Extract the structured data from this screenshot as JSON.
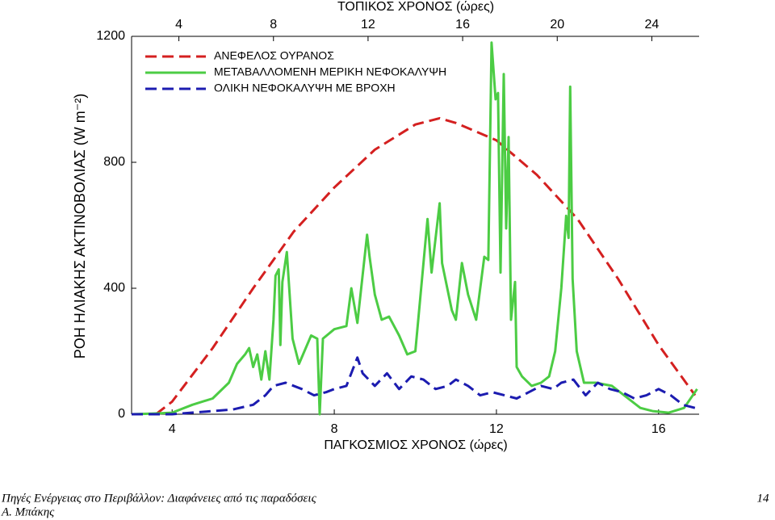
{
  "chart_data": {
    "type": "line",
    "xlabel": "ΠΑΓΚΟΣΜΙΟΣ ΧΡΟΝΟΣ (ώρες)",
    "x2label": "ΤΟΠΙΚΟΣ ΧΡΟΝΟΣ (ώρες)",
    "ylabel": "ΡΟΗ ΗΛΙΑΚΗΣ ΑΚΤΙΝΟΒΟΛΙΑΣ (W m⁻²)",
    "xlim": [
      3,
      17
    ],
    "xticks": [
      4,
      8,
      12,
      16
    ],
    "x2lim": [
      2,
      26
    ],
    "x2ticks": [
      4,
      8,
      12,
      16,
      20,
      24
    ],
    "ylim": [
      0,
      1200
    ],
    "yticks": [
      0,
      400,
      800,
      1200
    ],
    "grid": false,
    "legend": "upper left",
    "series": [
      {
        "name": "ΑΝΕΦΕΛΟΣ ΟΥΡΑΝΟΣ",
        "color": "#d42020",
        "dash": true,
        "x": [
          3.6,
          4,
          5,
          6,
          7,
          8,
          9,
          10,
          10.6,
          11,
          12,
          13,
          14,
          15,
          16,
          16.9
        ],
        "values": [
          0,
          40,
          210,
          400,
          580,
          720,
          840,
          920,
          940,
          925,
          870,
          760,
          620,
          430,
          220,
          60
        ]
      },
      {
        "name": "ΜΕΤΑΒΑΛΛΟΜΕΝΗ ΜΕΡΙΚΗ ΝΕΦΟΚΑΛΥΨΗ",
        "color": "#4ccc44",
        "dash": false,
        "x": [
          3.0,
          3.5,
          4.0,
          4.5,
          5.0,
          5.4,
          5.6,
          5.8,
          5.9,
          6.0,
          6.1,
          6.2,
          6.3,
          6.4,
          6.5,
          6.55,
          6.63,
          6.67,
          6.72,
          6.83,
          6.97,
          7.13,
          7.43,
          7.58,
          7.64,
          7.72,
          8.0,
          8.3,
          8.42,
          8.57,
          8.81,
          8.87,
          9.0,
          9.17,
          9.35,
          9.6,
          9.8,
          10.0,
          10.3,
          10.4,
          10.6,
          10.66,
          10.9,
          11.0,
          11.15,
          11.3,
          11.5,
          11.7,
          11.8,
          11.88,
          11.98,
          12.04,
          12.1,
          12.18,
          12.24,
          12.3,
          12.36,
          12.46,
          12.5,
          12.63,
          12.87,
          13.1,
          13.3,
          13.45,
          13.6,
          13.72,
          13.78,
          13.82,
          13.88,
          13.98,
          14.16,
          14.45,
          14.85,
          15.25,
          15.55,
          15.85,
          16.25,
          16.63,
          16.95
        ],
        "values": [
          0,
          2,
          5,
          30,
          50,
          100,
          160,
          190,
          210,
          150,
          190,
          110,
          200,
          110,
          300,
          440,
          460,
          220,
          420,
          515,
          240,
          160,
          250,
          240,
          0,
          240,
          270,
          280,
          400,
          290,
          570,
          500,
          380,
          300,
          310,
          250,
          190,
          200,
          620,
          450,
          670,
          480,
          330,
          300,
          480,
          380,
          300,
          500,
          490,
          1180,
          1000,
          1020,
          450,
          1080,
          590,
          880,
          300,
          420,
          150,
          120,
          90,
          100,
          120,
          200,
          400,
          630,
          560,
          1040,
          430,
          200,
          100,
          100,
          90,
          50,
          20,
          10,
          5,
          20,
          80
        ]
      },
      {
        "name": "ΟΛΙΚΗ ΝΕΦΟΚΑΛΥΨΗ ΜΕ ΒΡΟΧΗ",
        "color": "#1c1cb0",
        "dash": true,
        "x": [
          3.0,
          4.0,
          5.0,
          5.5,
          6.0,
          6.3,
          6.5,
          6.8,
          7.2,
          7.5,
          7.8,
          8.0,
          8.3,
          8.57,
          8.7,
          9.0,
          9.3,
          9.6,
          9.9,
          10.2,
          10.5,
          10.8,
          11.0,
          11.3,
          11.6,
          11.9,
          12.2,
          12.5,
          12.8,
          13.1,
          13.4,
          13.6,
          13.9,
          14.2,
          14.5,
          14.8,
          15.1,
          15.4,
          15.7,
          16.0,
          16.3,
          16.6,
          16.9
        ],
        "values": [
          0,
          0,
          10,
          15,
          30,
          60,
          90,
          100,
          80,
          60,
          70,
          80,
          90,
          180,
          130,
          90,
          130,
          80,
          120,
          110,
          80,
          90,
          110,
          90,
          60,
          70,
          60,
          50,
          70,
          90,
          80,
          100,
          110,
          60,
          100,
          80,
          70,
          50,
          60,
          80,
          60,
          30,
          20
        ]
      }
    ]
  },
  "footer": {
    "source": "Πηγές Ενέργειας στο Περιβάλλον: Διαφάνειες από τις παραδόσεις",
    "author": "Α. Μπάκης",
    "page": 14
  }
}
